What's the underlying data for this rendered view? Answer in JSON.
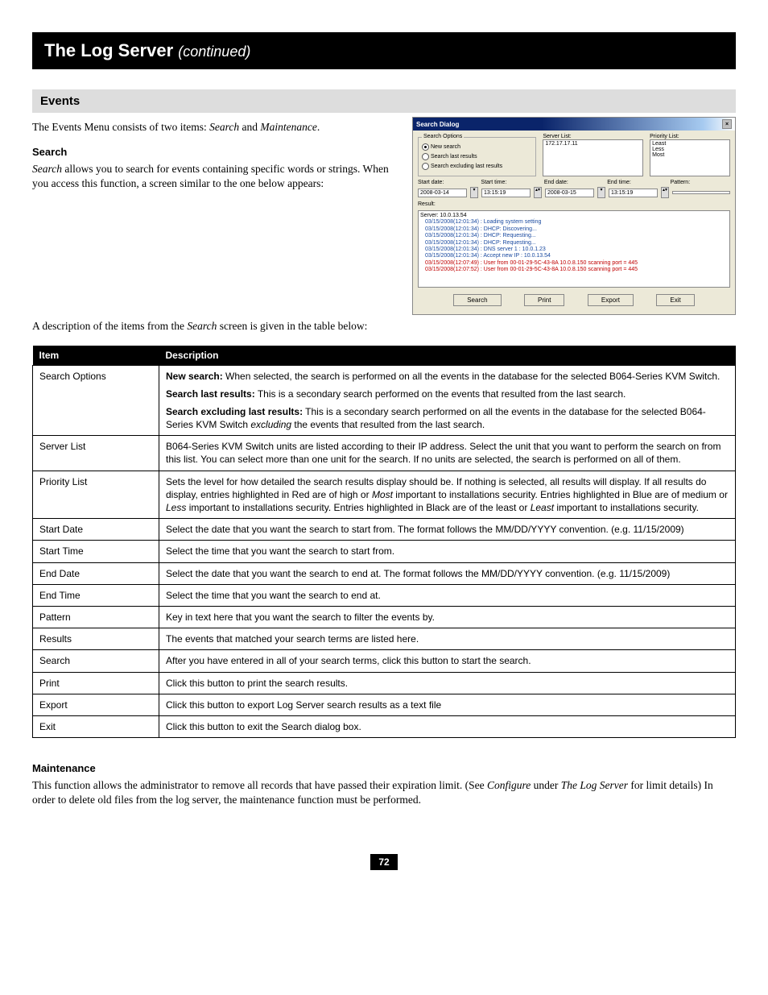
{
  "title": {
    "main": "The Log Server",
    "cont": "(continued)"
  },
  "sectionHeader": "Events",
  "intro": {
    "pre": "The Events Menu consists of two items: ",
    "i1": "Search",
    "mid": " and ",
    "i2": "Maintenance",
    "end": "."
  },
  "search": {
    "heading": "Search",
    "body_i": "Search",
    "body_rest": " allows you to search for events containing specific words or strings. When you access this function, a screen similar to the one below appears:"
  },
  "dialog": {
    "title": "Search Dialog",
    "searchOptionsLabel": "Search Options",
    "opt1": "New search",
    "opt2": "Search last results",
    "opt3": "Search excluding last results",
    "serverListLabel": "Server List:",
    "serverListVal": "172.17.17.11",
    "priorityListLabel": "Priority List:",
    "p1": "Least",
    "p2": "Less",
    "p3": "Most",
    "startDate": "Start date:",
    "startTime": "Start time:",
    "endDate": "End date:",
    "endTime": "End time:",
    "pattern": "Pattern:",
    "sd": "2008-03-14",
    "st": "13:15:19",
    "ed": "2008-03-15",
    "et": "13:15:19",
    "resultLabel": "Result:",
    "srv": "Server: 10.0.13.54",
    "rows": [
      {
        "t": "03/15/2008(12:01:34) : Loading system setting",
        "c": "#1a4aa0"
      },
      {
        "t": "03/15/2008(12:01:34) : DHCP: Discovering...",
        "c": "#1a4aa0"
      },
      {
        "t": "03/15/2008(12:01:34) : DHCP: Requesting...",
        "c": "#1a4aa0"
      },
      {
        "t": "03/15/2008(12:01:34) : DHCP: Requesting...",
        "c": "#1a4aa0"
      },
      {
        "t": "03/15/2008(12:01:34) : DNS server 1 : 10.0.1.23",
        "c": "#1a4aa0"
      },
      {
        "t": "03/15/2008(12:01:34) : Accept new IP : 10.0.13.54",
        "c": "#1a4aa0"
      },
      {
        "t": "03/15/2008(12:07:49) : User from 00-01-29-5C-43-8A 10.0.8.150 scanning port = 445",
        "c": "#c00000"
      },
      {
        "t": "03/15/2008(12:07:52) : User from 00-01-29-5C-43-8A 10.0.8.150 scanning port = 445",
        "c": "#c00000"
      }
    ],
    "btnSearch": "Search",
    "btnPrint": "Print",
    "btnExport": "Export",
    "btnExit": "Exit"
  },
  "tableIntro": {
    "pre": "A description of the items from the ",
    "i": "Search",
    "post": " screen is given in the table below:"
  },
  "table": {
    "hItem": "Item",
    "hDesc": "Description",
    "rows": [
      {
        "item": "Search Options",
        "desc": "<b>New search:</b> When selected, the search is performed on all the events in the database for the selected B064-Series KVM Switch.<div class='sub-desc'><b>Search last results:</b> This is a secondary search performed on the events that resulted from the last search.</div><div class='sub-desc'><b>Search excluding last results:</b> This is a secondary search performed on all the events in the database for the selected B064-Series KVM Switch <em>excluding</em> the events that resulted from the last search.</div>"
      },
      {
        "item": "Server List",
        "desc": "B064-Series KVM Switch units are listed according to their IP address. Select the unit that you want to perform the search on from this list. You can select more than one unit for the search. If no units are selected, the search is performed on all of them."
      },
      {
        "item": "Priority List",
        "desc": "Sets the level for how detailed the search results display should be. If nothing is selected, all results will display. If all results do display, entries highlighted in Red are of high or <em>Most</em> important to installations security. Entries highlighted in Blue are of medium or <em>Less</em> important to installations security. Entries highlighted in Black are of the least or <em>Least</em> important to installations security."
      },
      {
        "item": "Start Date",
        "desc": "Select the date that you want the search to start from. The format follows the MM/DD/YYYY convention. (e.g. 11/15/2009)"
      },
      {
        "item": "Start Time",
        "desc": "Select the time that you want the search to start from."
      },
      {
        "item": "End Date",
        "desc": "Select the date that you want the search to end at. The format follows the MM/DD/YYYY convention. (e.g. 11/15/2009)"
      },
      {
        "item": "End Time",
        "desc": "Select the time that you want the search to end at."
      },
      {
        "item": "Pattern",
        "desc": "Key in text here that you want the search to filter the events by."
      },
      {
        "item": "Results",
        "desc": "The events that matched your search terms are listed here."
      },
      {
        "item": "Search",
        "desc": "After you have entered in all of your search terms, click this button to start the search."
      },
      {
        "item": "Print",
        "desc": "Click this button to print the search results."
      },
      {
        "item": "Export",
        "desc": "Click this button to export Log Server search results as a text file"
      },
      {
        "item": "Exit",
        "desc": "Click this button to exit the Search dialog box."
      }
    ]
  },
  "maintenance": {
    "heading": "Maintenance",
    "pre": "This function allows the administrator to remove all records that have passed their expiration limit. (See ",
    "i1": "Configure",
    "mid": " under ",
    "i2": "The Log Server",
    "post": " for limit details) In order to delete old files from the log server, the maintenance function must be performed."
  },
  "pageNum": "72"
}
